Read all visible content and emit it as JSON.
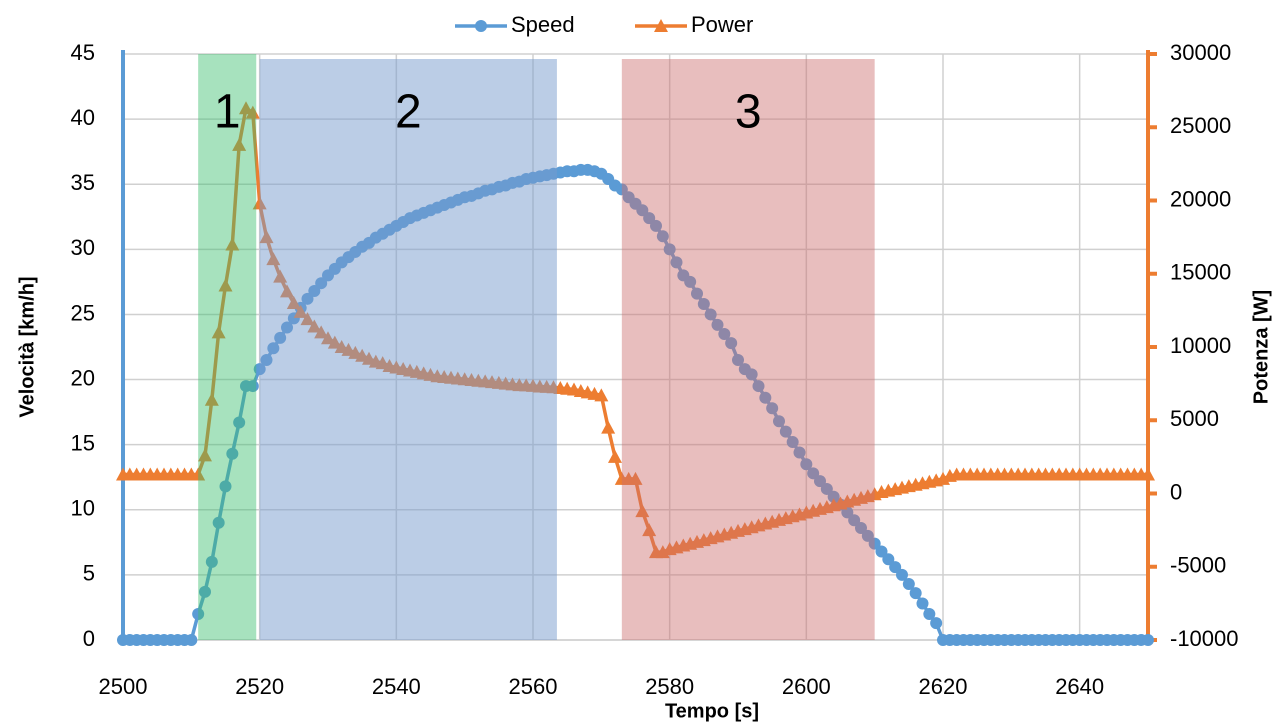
{
  "chart_data": {
    "type": "line",
    "x_label": "Tempo [s]",
    "y_label": "Velocità [km/h]",
    "y2_label": "Potenza [W]",
    "xlim": [
      2500,
      2650
    ],
    "xticks": [
      2500,
      2520,
      2540,
      2560,
      2580,
      2600,
      2620,
      2640
    ],
    "ylim": [
      0,
      45
    ],
    "yticks": [
      0,
      5,
      10,
      15,
      20,
      25,
      30,
      35,
      40,
      45
    ],
    "y2lim": [
      -10000,
      30000
    ],
    "y2ticks": [
      -10000,
      -5000,
      0,
      5000,
      10000,
      15000,
      20000,
      25000,
      30000
    ],
    "grid": true,
    "legend": "top",
    "x": [
      2500,
      2501,
      2502,
      2503,
      2504,
      2505,
      2506,
      2507,
      2508,
      2509,
      2510,
      2511,
      2512,
      2513,
      2514,
      2515,
      2516,
      2517,
      2518,
      2519,
      2520,
      2521,
      2522,
      2523,
      2524,
      2525,
      2526,
      2527,
      2528,
      2529,
      2530,
      2531,
      2532,
      2533,
      2534,
      2535,
      2536,
      2537,
      2538,
      2539,
      2540,
      2541,
      2542,
      2543,
      2544,
      2545,
      2546,
      2547,
      2548,
      2549,
      2550,
      2551,
      2552,
      2553,
      2554,
      2555,
      2556,
      2557,
      2558,
      2559,
      2560,
      2561,
      2562,
      2563,
      2564,
      2565,
      2566,
      2567,
      2568,
      2569,
      2570,
      2571,
      2572,
      2573,
      2574,
      2575,
      2576,
      2577,
      2578,
      2579,
      2580,
      2581,
      2582,
      2583,
      2584,
      2585,
      2586,
      2587,
      2588,
      2589,
      2590,
      2591,
      2592,
      2593,
      2594,
      2595,
      2596,
      2597,
      2598,
      2599,
      2600,
      2601,
      2602,
      2603,
      2604,
      2605,
      2606,
      2607,
      2608,
      2609,
      2610,
      2611,
      2612,
      2613,
      2614,
      2615,
      2616,
      2617,
      2618,
      2619,
      2620,
      2621,
      2622,
      2623,
      2624,
      2625,
      2626,
      2627,
      2628,
      2629,
      2630,
      2631,
      2632,
      2633,
      2634,
      2635,
      2636,
      2637,
      2638,
      2639,
      2640,
      2641,
      2642,
      2643,
      2644,
      2645,
      2646,
      2647,
      2648,
      2649,
      2650
    ],
    "series": [
      {
        "name": "Speed",
        "color": "#5b9bd5",
        "marker": "circle",
        "values": [
          0,
          0,
          0,
          0,
          0,
          0,
          0,
          0,
          0,
          0,
          0,
          2,
          3.7,
          6,
          9,
          11.8,
          14.3,
          16.7,
          19.5,
          19.5,
          20.8,
          21.5,
          22.4,
          23.2,
          24,
          24.7,
          25.5,
          26.2,
          26.8,
          27.4,
          28,
          28.5,
          29,
          29.4,
          29.8,
          30.2,
          30.5,
          30.9,
          31.2,
          31.5,
          31.8,
          32.1,
          32.4,
          32.6,
          32.8,
          33,
          33.2,
          33.4,
          33.6,
          33.8,
          34,
          34.1,
          34.3,
          34.5,
          34.6,
          34.8,
          34.9,
          35.1,
          35.2,
          35.4,
          35.5,
          35.6,
          35.7,
          35.8,
          35.9,
          36,
          36,
          36.1,
          36.1,
          36,
          35.8,
          35.4,
          34.9,
          34.6,
          34,
          33.5,
          33,
          32.4,
          31.8,
          31,
          30,
          29,
          28,
          27.5,
          26.6,
          25.8,
          25,
          24.2,
          23.5,
          22.8,
          21.5,
          20.8,
          20.4,
          19.5,
          18.6,
          17.8,
          16.8,
          16,
          15.2,
          14.4,
          13.5,
          12.8,
          12.2,
          11.6,
          11,
          10.4,
          9.8,
          9.2,
          8.6,
          8,
          7.4,
          6.8,
          6.2,
          5.6,
          5,
          4.3,
          3.6,
          2.8,
          2,
          1.3,
          0,
          0,
          0,
          0,
          0,
          0,
          0,
          0,
          0,
          0,
          0,
          0,
          0,
          0,
          0,
          0,
          0,
          0,
          0,
          0,
          0,
          0,
          0,
          0,
          0,
          0,
          0,
          0,
          0,
          0,
          0
        ]
      },
      {
        "name": "Power",
        "color": "#ed7d31",
        "marker": "triangle",
        "axis": "y2",
        "values": [
          1300,
          1300,
          1300,
          1300,
          1300,
          1300,
          1300,
          1300,
          1300,
          1300,
          1300,
          1300,
          2600,
          6400,
          11000,
          14200,
          17000,
          23800,
          26300,
          26000,
          19800,
          17500,
          16000,
          14800,
          13800,
          13000,
          12400,
          11900,
          11400,
          11000,
          10600,
          10300,
          10000,
          9800,
          9600,
          9400,
          9200,
          9000,
          8900,
          8700,
          8600,
          8500,
          8400,
          8300,
          8200,
          8100,
          8000,
          7950,
          7900,
          7850,
          7800,
          7750,
          7700,
          7650,
          7600,
          7550,
          7500,
          7450,
          7400,
          7380,
          7350,
          7300,
          7280,
          7250,
          7200,
          7150,
          7100,
          7000,
          6900,
          6800,
          6700,
          4500,
          2500,
          1000,
          1000,
          1000,
          -1200,
          -2500,
          -4000,
          -4000,
          -3800,
          -3680,
          -3550,
          -3430,
          -3300,
          -3180,
          -3050,
          -2930,
          -2800,
          -2680,
          -2550,
          -2430,
          -2300,
          -2180,
          -2050,
          -1930,
          -1800,
          -1680,
          -1550,
          -1430,
          -1300,
          -1180,
          -1050,
          -930,
          -800,
          -680,
          -550,
          -430,
          -300,
          -180,
          -50,
          100,
          200,
          300,
          400,
          500,
          600,
          700,
          800,
          900,
          1000,
          1200,
          1300,
          1300,
          1300,
          1300,
          1300,
          1300,
          1300,
          1300,
          1300,
          1300,
          1300,
          1300,
          1300,
          1300,
          1300,
          1300,
          1300,
          1300,
          1300,
          1300,
          1300,
          1300,
          1300,
          1300,
          1300,
          1300,
          1300,
          1300,
          1300
        ]
      }
    ],
    "regions": [
      {
        "label": "1",
        "start": 2511,
        "end": 2519.5,
        "color": "rgba(60,190,110,0.45)"
      },
      {
        "label": "2",
        "start": 2520,
        "end": 2563.5,
        "color": "rgba(120,155,205,0.5)"
      },
      {
        "label": "3",
        "start": 2573,
        "end": 2610,
        "color": "rgba(205,110,110,0.45)"
      }
    ]
  }
}
